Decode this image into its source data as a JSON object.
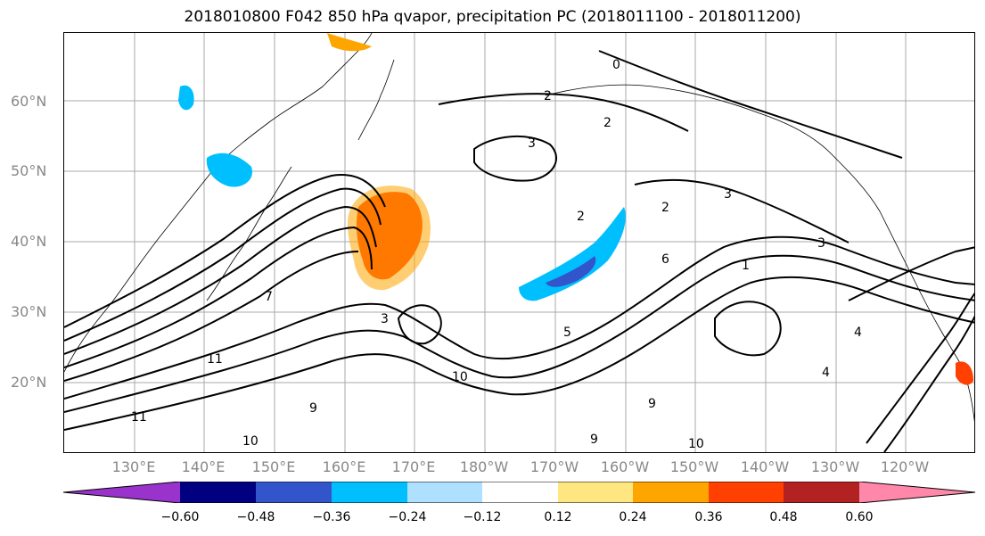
{
  "title": "2018010800 F042 850 hPa qvapor, precipitation PC (2018011100 - 2018011200)",
  "lat_labels": [
    "60°N",
    "50°N",
    "40°N",
    "30°N",
    "20°N"
  ],
  "lon_labels": [
    "130°E",
    "140°E",
    "150°E",
    "160°E",
    "170°E",
    "180°W",
    "170°W",
    "160°W",
    "150°W",
    "140°W",
    "130°W",
    "120°W"
  ],
  "colorbar": {
    "ticks": [
      "−0.60",
      "−0.48",
      "−0.36",
      "−0.24",
      "−0.12",
      "0.12",
      "0.24",
      "0.36",
      "0.48",
      "0.60"
    ],
    "colors": [
      "#9933cc",
      "#000080",
      "#3355cc",
      "#00bfff",
      "#aee0ff",
      "#ffffff",
      "#ffe680",
      "#ffa500",
      "#ff4000",
      "#b22222",
      "#ff88aa"
    ]
  },
  "contour_labels": [
    "0",
    "2",
    "2",
    "3",
    "2",
    "3",
    "2",
    "3",
    "4",
    "6",
    "5",
    "4",
    "3",
    "1",
    "7",
    "11",
    "9",
    "10",
    "11",
    "9",
    "10",
    "9",
    "10"
  ],
  "shading_colors": {
    "positive_light": "#ffe680",
    "positive_mid": "#ffa500",
    "positive_strong": "#ff4000",
    "positive_max": "#b22222",
    "negative_light": "#aee0ff",
    "negative_mid": "#00bfff",
    "negative_strong": "#3355cc",
    "negative_max": "#9933cc"
  }
}
